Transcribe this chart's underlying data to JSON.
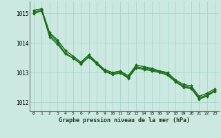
{
  "xlabel": "Graphe pression niveau de la mer (hPa)",
  "xlim": [
    -0.5,
    23.5
  ],
  "ylim": [
    1011.7,
    1015.4
  ],
  "yticks": [
    1012,
    1013,
    1014,
    1015
  ],
  "xticks": [
    0,
    1,
    2,
    3,
    4,
    5,
    6,
    7,
    8,
    9,
    10,
    11,
    12,
    13,
    14,
    15,
    16,
    17,
    18,
    19,
    20,
    21,
    22,
    23
  ],
  "background_color": "#cce9e1",
  "grid_color": "#a8d4cc",
  "line_color": "#1a6e1a",
  "marker": "D",
  "marker_size": 1.8,
  "line_width": 0.8,
  "series": [
    [
      1015.1,
      1015.15,
      1014.35,
      1014.1,
      1013.75,
      1013.55,
      1013.35,
      1013.6,
      1013.3,
      1013.1,
      1013.0,
      1013.05,
      1012.85,
      1013.25,
      1013.2,
      1013.1,
      1013.05,
      1013.0,
      1012.75,
      1012.6,
      1012.55,
      1012.2,
      1012.3,
      1012.45
    ],
    [
      1015.1,
      1015.15,
      1014.35,
      1014.1,
      1013.75,
      1013.55,
      1013.35,
      1013.6,
      1013.35,
      1013.1,
      1013.0,
      1013.05,
      1012.9,
      1013.25,
      1013.2,
      1013.15,
      1013.05,
      1013.0,
      1012.75,
      1012.6,
      1012.55,
      1012.2,
      1012.3,
      1012.45
    ],
    [
      1015.05,
      1015.1,
      1014.3,
      1014.05,
      1013.65,
      1013.5,
      1013.3,
      1013.55,
      1013.3,
      1013.05,
      1013.0,
      1013.0,
      1012.85,
      1013.2,
      1013.15,
      1013.1,
      1013.05,
      1012.95,
      1012.72,
      1012.55,
      1012.5,
      1012.15,
      1012.25,
      1012.4
    ],
    [
      1015.0,
      1015.1,
      1014.25,
      1014.0,
      1013.65,
      1013.5,
      1013.3,
      1013.55,
      1013.3,
      1013.05,
      1012.95,
      1013.0,
      1012.82,
      1013.18,
      1013.12,
      1013.08,
      1013.02,
      1012.93,
      1012.7,
      1012.52,
      1012.48,
      1012.12,
      1012.22,
      1012.38
    ],
    [
      1014.98,
      1015.08,
      1014.2,
      1013.95,
      1013.62,
      1013.48,
      1013.28,
      1013.52,
      1013.28,
      1013.03,
      1012.93,
      1012.98,
      1012.8,
      1013.15,
      1013.1,
      1013.05,
      1013.0,
      1012.9,
      1012.68,
      1012.5,
      1012.45,
      1012.1,
      1012.2,
      1012.36
    ]
  ]
}
